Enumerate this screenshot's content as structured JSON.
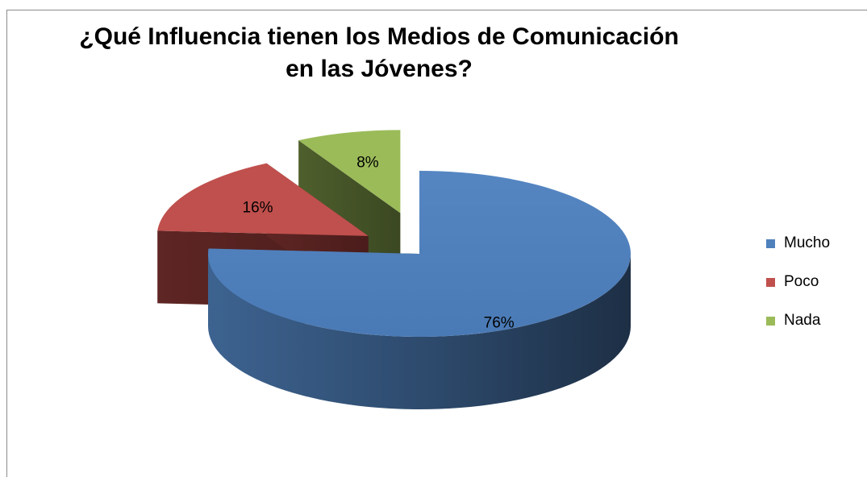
{
  "chart_data": {
    "type": "pie",
    "title": "¿Qué Influencia tienen los Medios de Comunicación en las Jóvenes?",
    "categories": [
      "Mucho",
      "Poco",
      "Nada"
    ],
    "values": [
      76,
      16,
      8
    ],
    "data_labels": [
      "76%",
      "16%",
      "8%"
    ],
    "colors": [
      "#4f81bd",
      "#c0504d",
      "#9bbb59"
    ],
    "legend_position": "right",
    "exploded": true,
    "three_d": true
  }
}
